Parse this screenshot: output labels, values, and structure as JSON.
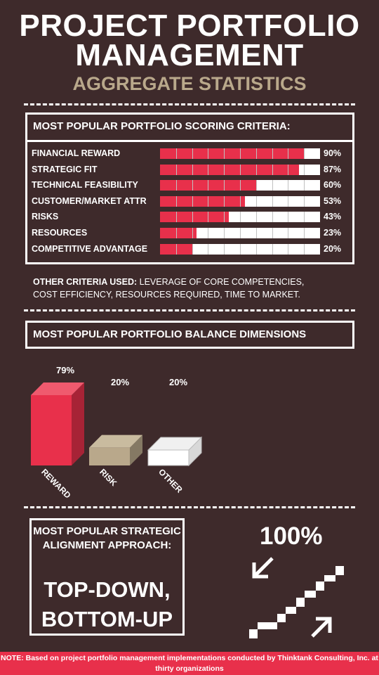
{
  "header": {
    "title_line1": "PROJECT PORTFOLIO",
    "title_line2": "MANAGEMENT",
    "subtitle": "AGGREGATE STATISTICS"
  },
  "colors": {
    "background": "#3e2a2b",
    "accent_red": "#e8304b",
    "tan": "#b9a88b",
    "white": "#ffffff"
  },
  "scoring_panel": {
    "title": "MOST POPULAR PORTFOLIO SCORING CRITERIA:"
  },
  "other_criteria": {
    "label": "OTHER CRITERIA USED:",
    "text": " LEVERAGE OF CORE COMPETENCIES, COST EFFICIENCY, RESOURCES REQUIRED, TIME TO MARKET."
  },
  "balance_panel": {
    "title": "MOST POPULAR PORTFOLIO BALANCE DIMENSIONS"
  },
  "alignment": {
    "label": "MOST POPULAR STRATEGIC ALIGNMENT APPROACH:",
    "value_line1": "TOP-DOWN,",
    "value_line2": "BOTTOM-UP",
    "stat": "100%",
    "icon": "stairs-arrows-icon"
  },
  "footer": {
    "note": "NOTE: Based on project portfolio management implementations conducted by Thinktank Consulting, Inc. at thirty organizations"
  },
  "chart_data": [
    {
      "type": "bar",
      "orientation": "horizontal",
      "title": "MOST POPULAR PORTFOLIO SCORING CRITERIA:",
      "categories": [
        "FINANCIAL REWARD",
        "STRATEGIC FIT",
        "TECHNICAL FEASIBILITY",
        "CUSTOMER/MARKET ATTR",
        "RISKS",
        "RESOURCES",
        "COMPETITIVE ADVANTAGE"
      ],
      "values": [
        90,
        87,
        60,
        53,
        43,
        23,
        20
      ],
      "labels": [
        "90%",
        "87%",
        "60%",
        "53%",
        "43%",
        "23%",
        "20%"
      ],
      "xlim": [
        0,
        100
      ],
      "segments": 10,
      "color": "#e8304b"
    },
    {
      "type": "bar",
      "style": "3d",
      "title": "MOST POPULAR PORTFOLIO BALANCE DIMENSIONS",
      "categories": [
        "REWARD",
        "RISK",
        "OTHER"
      ],
      "values": [
        79,
        20,
        20
      ],
      "labels": [
        "79%",
        "20%",
        "20%"
      ],
      "colors": [
        "#e8304b",
        "#b9a88b",
        "#ffffff"
      ]
    }
  ]
}
